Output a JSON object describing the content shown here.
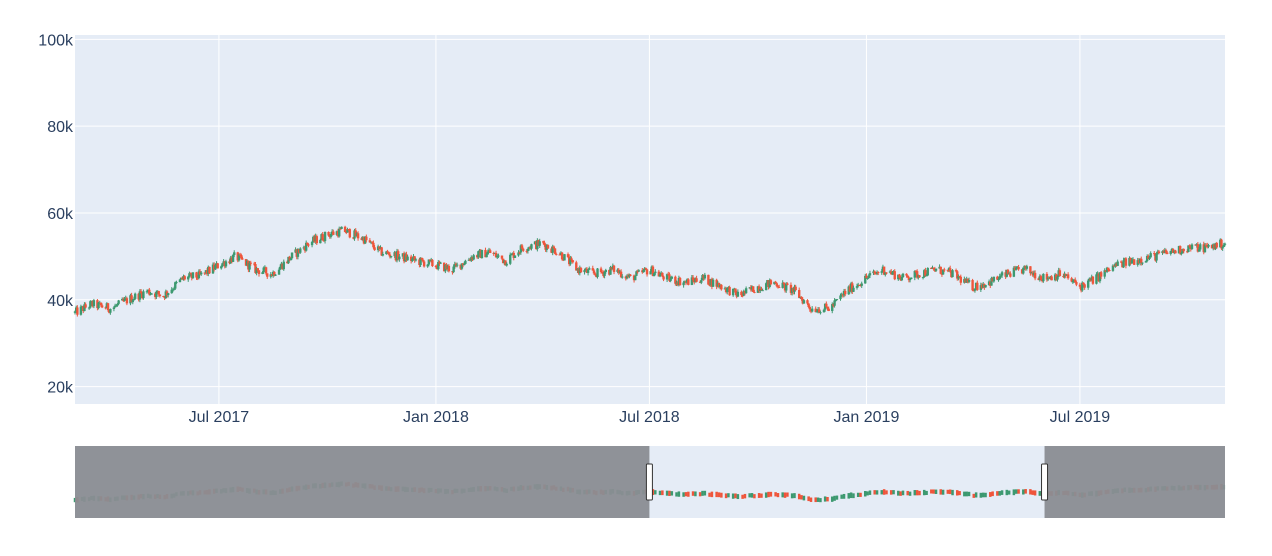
{
  "chart_data": {
    "type": "candlestick",
    "title": "",
    "xlabel": "",
    "ylabel": "",
    "x_range": [
      "2017-03-01",
      "2019-11-01"
    ],
    "ylim": [
      16000,
      101000
    ],
    "y_ticks": [
      20000,
      40000,
      60000,
      80000,
      100000
    ],
    "y_tick_labels": [
      "20k",
      "40k",
      "60k",
      "80k",
      "100k"
    ],
    "x_ticks": [
      "2017-07-01",
      "2018-01-01",
      "2018-07-01",
      "2019-01-01",
      "2019-07-01"
    ],
    "x_tick_labels": [
      "Jul 2017",
      "Jan 2018",
      "Jul 2018",
      "Jan 2019",
      "Jul 2019"
    ],
    "grid": true,
    "colors": {
      "increasing": "#3D9970",
      "decreasing": "#EF553B",
      "plot_background": "#E5ECF6",
      "gridline": "#FFFFFF",
      "tick_text": "#2A3F5F",
      "range_mask": "#8A8D92"
    },
    "trend_close": {
      "dates": [
        "2017-03-01",
        "2017-03-15",
        "2017-04-01",
        "2017-04-15",
        "2017-05-01",
        "2017-05-15",
        "2017-06-01",
        "2017-06-15",
        "2017-07-01",
        "2017-07-15",
        "2017-08-01",
        "2017-08-15",
        "2017-09-01",
        "2017-09-15",
        "2017-10-01",
        "2017-10-15",
        "2017-11-01",
        "2017-11-15",
        "2017-12-01",
        "2017-12-15",
        "2018-01-01",
        "2018-01-15",
        "2018-02-01",
        "2018-02-15",
        "2018-03-01",
        "2018-03-15",
        "2018-04-01",
        "2018-04-15",
        "2018-05-01",
        "2018-05-15",
        "2018-06-01",
        "2018-06-15",
        "2018-07-01",
        "2018-07-15",
        "2018-08-01",
        "2018-08-15",
        "2018-09-01",
        "2018-09-15",
        "2018-10-01",
        "2018-10-15",
        "2018-11-01",
        "2018-11-15",
        "2018-12-01",
        "2018-12-15",
        "2019-01-01",
        "2019-01-15",
        "2019-02-01",
        "2019-02-15",
        "2019-03-01",
        "2019-03-15",
        "2019-04-01",
        "2019-04-15",
        "2019-05-01",
        "2019-05-15",
        "2019-06-01",
        "2019-06-15",
        "2019-07-01",
        "2019-07-15",
        "2019-08-01",
        "2019-08-15",
        "2019-09-01",
        "2019-09-15",
        "2019-10-01",
        "2019-10-15",
        "2019-11-01"
      ],
      "values": [
        37000,
        39000,
        38000,
        40000,
        42000,
        41000,
        45000,
        45500,
        48000,
        50000,
        47000,
        46000,
        50000,
        53000,
        55000,
        56000,
        54000,
        51000,
        50000,
        49000,
        48000,
        47000,
        50000,
        51000,
        49000,
        52000,
        53000,
        51000,
        47000,
        46000,
        47000,
        45000,
        47000,
        45000,
        44000,
        45000,
        43000,
        41000,
        43000,
        44000,
        42000,
        38000,
        38000,
        42000,
        45000,
        47000,
        45000,
        46000,
        47000,
        46000,
        43000,
        44000,
        46000,
        47000,
        45000,
        46000,
        43000,
        45000,
        48000,
        49000,
        50000,
        51000,
        52000,
        52000,
        53000
      ]
    },
    "range_selector": {
      "selected_range": [
        "2018-07-01",
        "2019-06-01"
      ]
    }
  }
}
